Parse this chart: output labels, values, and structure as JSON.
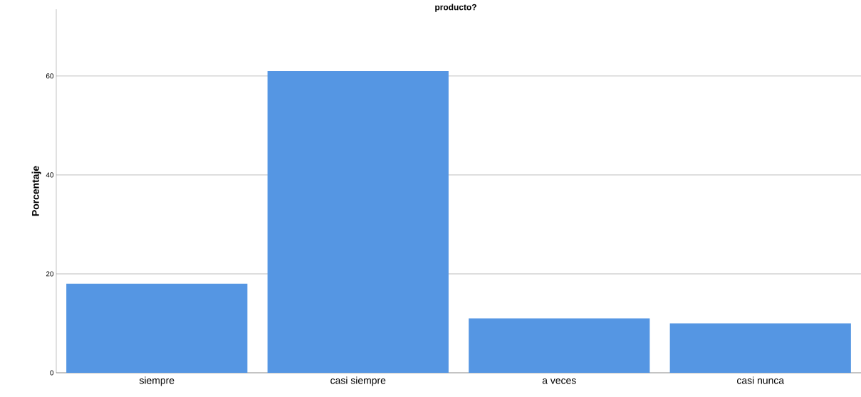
{
  "chart_data": {
    "type": "bar",
    "title": "producto?",
    "ylabel": "Porcentaje",
    "categories": [
      "siempre",
      "casi siempre",
      "a veces",
      "casi nunca"
    ],
    "values": [
      18,
      61,
      11,
      10
    ],
    "color": "#5596e3",
    "ylim": [
      0,
      73.5
    ],
    "yticks": [
      0,
      20,
      40,
      60
    ],
    "grid": "y"
  }
}
